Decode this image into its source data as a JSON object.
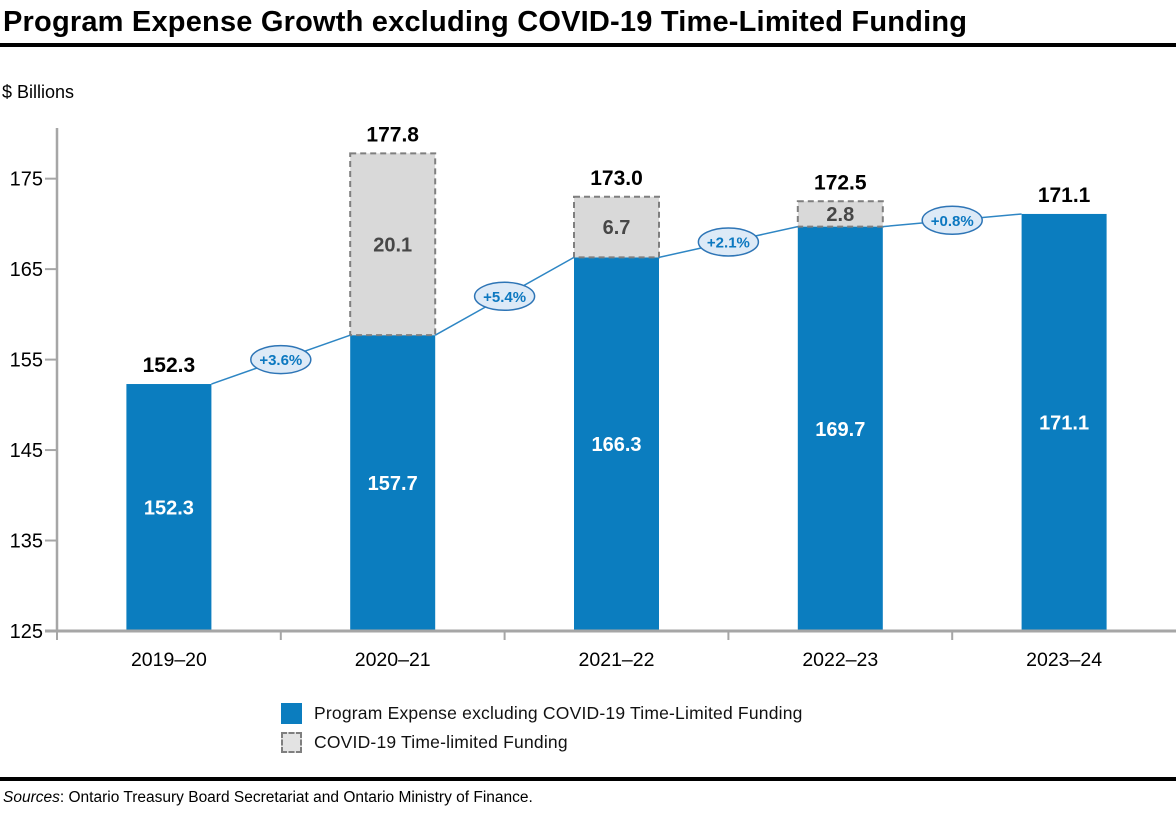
{
  "title": "Program Expense Growth excluding COVID-19 Time-Limited Funding",
  "y_axis_unit_label": "$ Billions",
  "legend": {
    "items": [
      {
        "label": "Program Expense excluding COVID-19 Time-Limited Funding",
        "swatch": "solid-blue"
      },
      {
        "label": "COVID-19 Time-limited Funding",
        "swatch": "dashed-gray"
      }
    ]
  },
  "sources": {
    "label_italic": "Sources",
    "rest": ": Ontario Treasury Board Secretariat and Ontario Ministry of Finance."
  },
  "colors": {
    "bar_blue": "#0b7dbf",
    "bar_label_white": "#ffffff",
    "covid_fill": "#d9d9d9",
    "covid_border": "#7f7f7f",
    "covid_text": "#474747",
    "total_text": "#000000",
    "line_blue": "#2e86c4",
    "oval_fill": "#ddeaf7",
    "oval_border": "#2e75b6",
    "oval_text": "#0c78c0",
    "axis_gray": "#a6a6a6",
    "tick_text": "#000000"
  },
  "chart_data": {
    "type": "bar",
    "stacked": true,
    "title": "Program Expense Growth excluding COVID-19 Time-Limited Funding",
    "ylabel": "$ Billions",
    "xlabel": "",
    "categories": [
      "2019–20",
      "2020–21",
      "2021–22",
      "2022–23",
      "2023–24"
    ],
    "series": [
      {
        "name": "Program Expense excluding COVID-19 Time-Limited Funding",
        "values": [
          152.3,
          157.7,
          166.3,
          169.7,
          171.1
        ]
      },
      {
        "name": "COVID-19 Time-limited Funding",
        "values": [
          0,
          20.1,
          6.7,
          2.8,
          0
        ]
      }
    ],
    "totals": [
      152.3,
      177.8,
      173.0,
      172.5,
      171.1
    ],
    "growth_labels": [
      "+3.6%",
      "+5.4%",
      "+2.1%",
      "+0.8%"
    ],
    "yticks": [
      125,
      135,
      145,
      155,
      165,
      175
    ],
    "ylim": [
      125,
      180.6
    ],
    "grid": false,
    "legend_position": "bottom"
  }
}
